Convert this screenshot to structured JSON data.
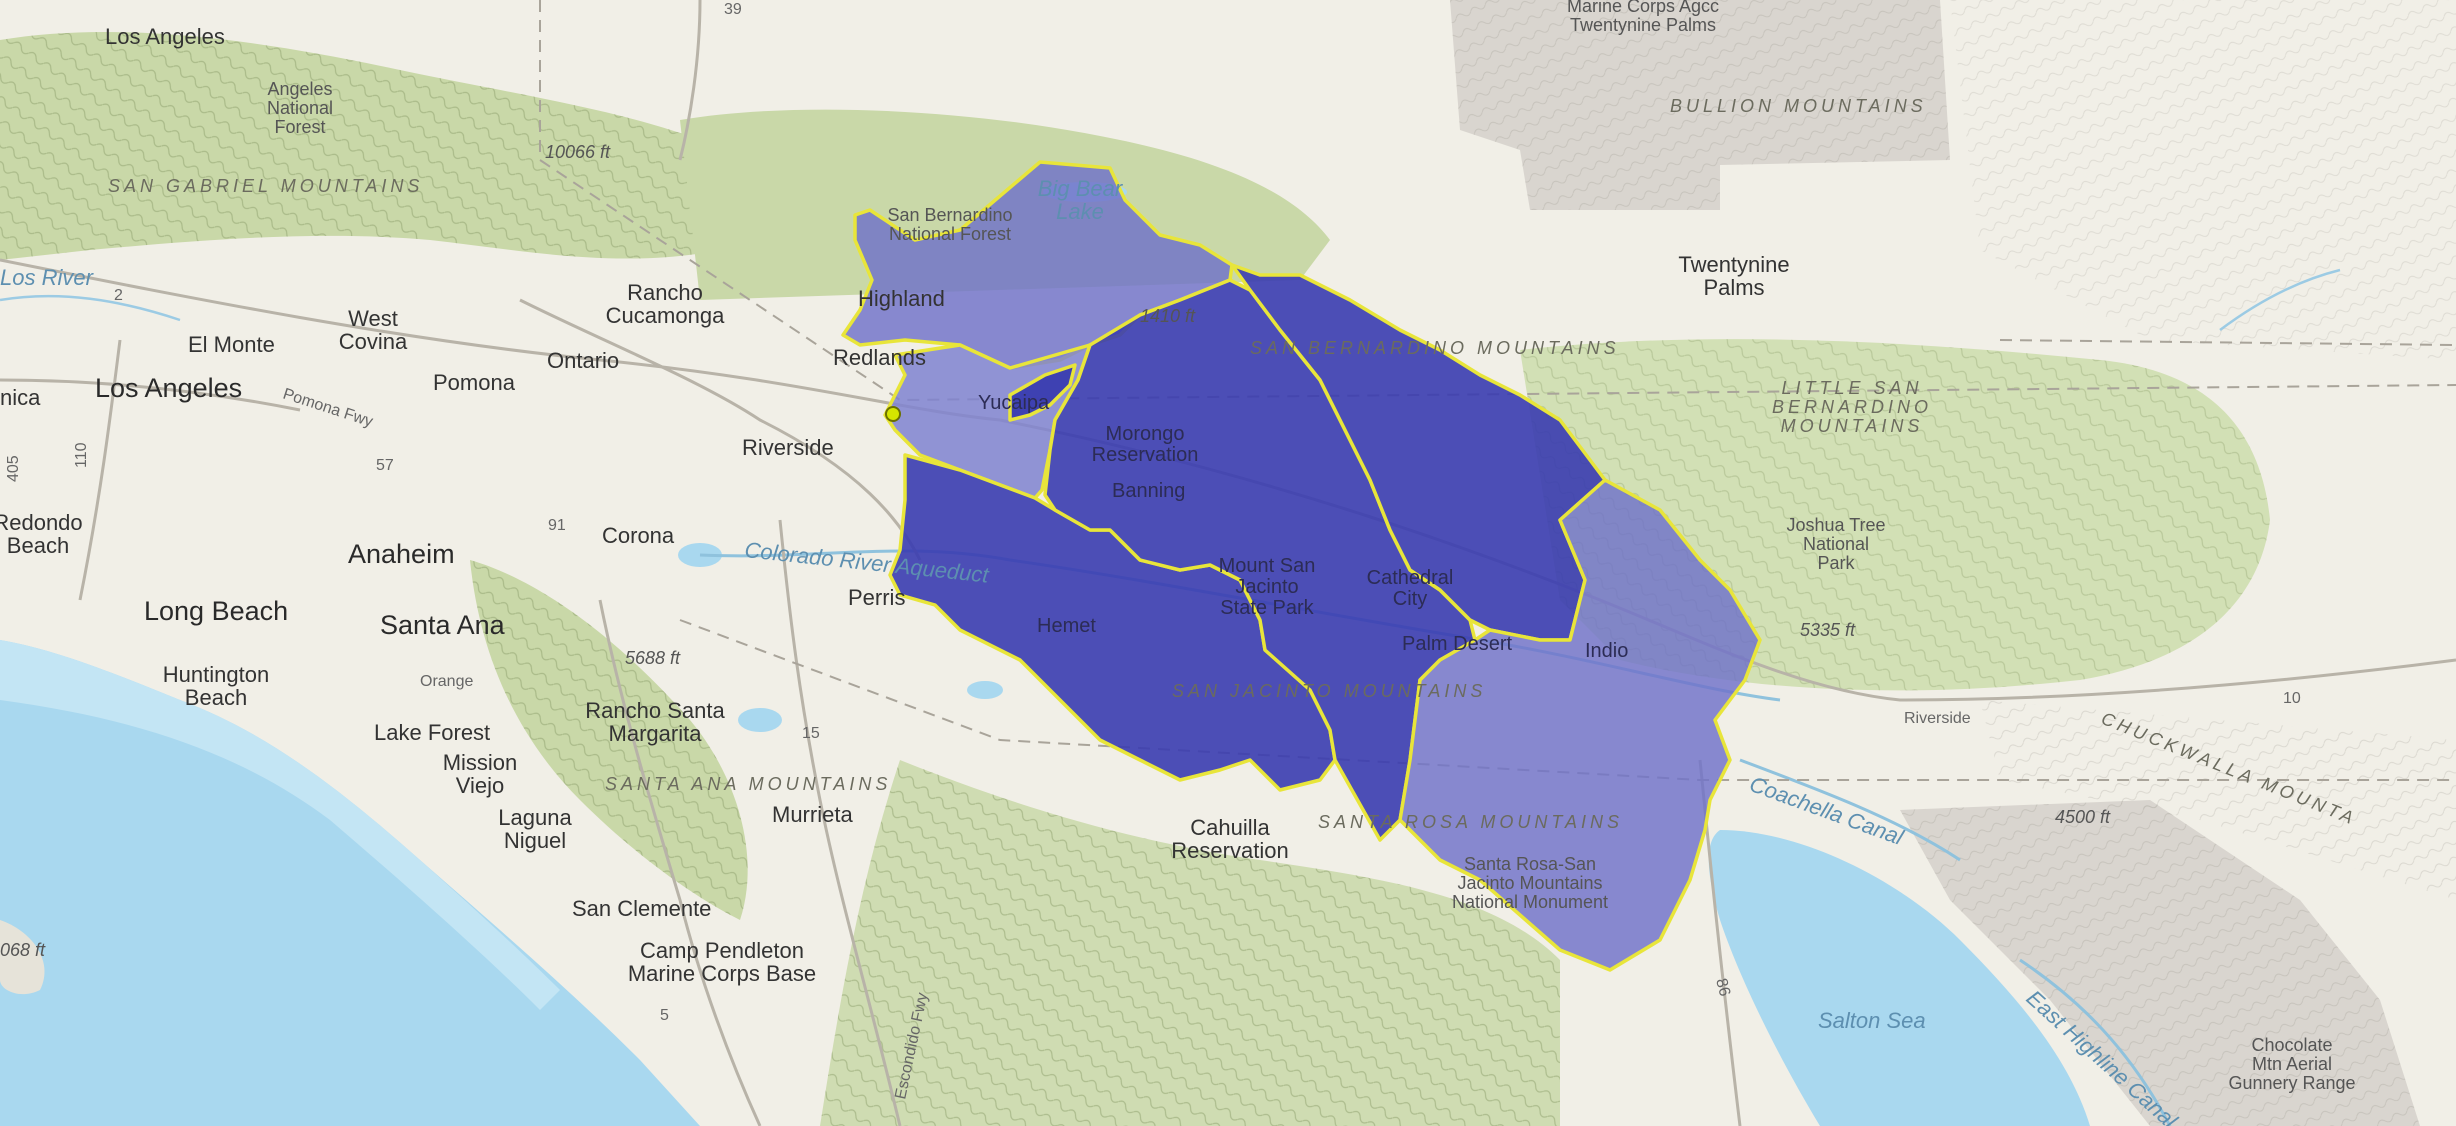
{
  "map": {
    "labels": {
      "los_angeles_top": "Los Angeles",
      "angeles_forest": "Angeles\nNational\nForest",
      "san_gabriel_mtns": "SAN GABRIEL MOUNTAINS",
      "elev_10066": "10066 ft",
      "los_river": "Los River",
      "el_monte": "El Monte",
      "west_covina": "West\nCovina",
      "los_angeles": "Los Angeles",
      "nica": "nica",
      "pomona": "Pomona",
      "pomona_fwy": "Pomona Fwy",
      "ontario": "Ontario",
      "rancho_cucamonga": "Rancho\nCucamonga",
      "highland": "Highland",
      "sb_forest": "San Bernardino\nNational Forest",
      "big_bear_lake": "Big Bear\nLake",
      "redlands": "Redlands",
      "yucaipa": "Yucaipa",
      "riverside": "Riverside",
      "redondo_beach": "Redondo\nBeach",
      "anaheim": "Anaheim",
      "corona": "Corona",
      "long_beach": "Long Beach",
      "santa_ana": "Santa Ana",
      "orange": "Orange",
      "huntington_beach": "Huntington\nBeach",
      "elev_5688": "5688 ft",
      "rancho_santa_margarita": "Rancho Santa\nMargarita",
      "lake_forest": "Lake Forest",
      "mission_viejo": "Mission\nViejo",
      "santa_ana_mtns": "SANTA ANA MOUNTAINS",
      "laguna_niguel": "Laguna\nNiguel",
      "murrieta": "Murrieta",
      "san_clemente": "San Clemente",
      "camp_pendleton": "Camp Pendleton\nMarine Corps Base",
      "elev_068": "068 ft",
      "escondido_fwy": "Escondido Fwy",
      "colorado_aqueduct": "Colorado River Aqueduct",
      "perris": "Perris",
      "hemet": "Hemet",
      "morongo": "Morongo\nReservation",
      "banning": "Banning",
      "mount_san_jacinto": "Mount San\nJacinto\nState Park",
      "cathedral_city": "Cathedral\nCity",
      "palm_desert": "Palm Desert",
      "indio": "Indio",
      "san_jacinto_mtns": "SAN JACINTO MOUNTAINS",
      "santa_rosa_mtns": "SANTA ROSA MOUNTAINS",
      "santa_rosa_monument": "Santa Rosa-San\nJacinto Mountains\nNational Monument",
      "cahuilla": "Cahuilla\nReservation",
      "elev_1410": "1410 ft",
      "sb_mtns": "SAN BERNARDINO MOUNTAINS",
      "marine_corps_agcc": "Marine Corps Agcc\nTwentynine Palms",
      "bullion_mtns": "BULLION MOUNTAINS",
      "twentynine_palms": "Twentynine\nPalms",
      "little_sb_mtns": "LITTLE SAN\nBERNARDINO\nMOUNTAINS",
      "joshua_tree": "Joshua Tree\nNational\nPark",
      "elev_5335": "5335 ft",
      "riverside_hwy": "Riverside",
      "chuckwalla": "CHUCKWALLA MOUNTA",
      "elev_4500": "4500 ft",
      "coachella_canal": "Coachella Canal",
      "salton_sea": "Salton Sea",
      "east_highline": "East Highline Canal",
      "chocolate_mtn": "Chocolate\nMtn Aerial\nGunnery Range",
      "hwy_39": "39",
      "hwy_2": "2",
      "hwy_405": "405",
      "hwy_110": "110",
      "hwy_57": "57",
      "hwy_91": "91",
      "hwy_15": "15",
      "hwy_5": "5",
      "hwy_10": "10",
      "hwy_86": "86"
    },
    "colors": {
      "ocean": "#a9d8ef",
      "land": "#f1efe7",
      "forest": "#c9d8a8",
      "desert_military": "#d9d5cf",
      "basin_dark": "#3a3cb0",
      "basin_light": "#6f72c9",
      "basin_outline": "#e8e53a",
      "outlet_point": "#d5e600"
    },
    "icons": {
      "outlet": "outlet-point-icon"
    }
  }
}
